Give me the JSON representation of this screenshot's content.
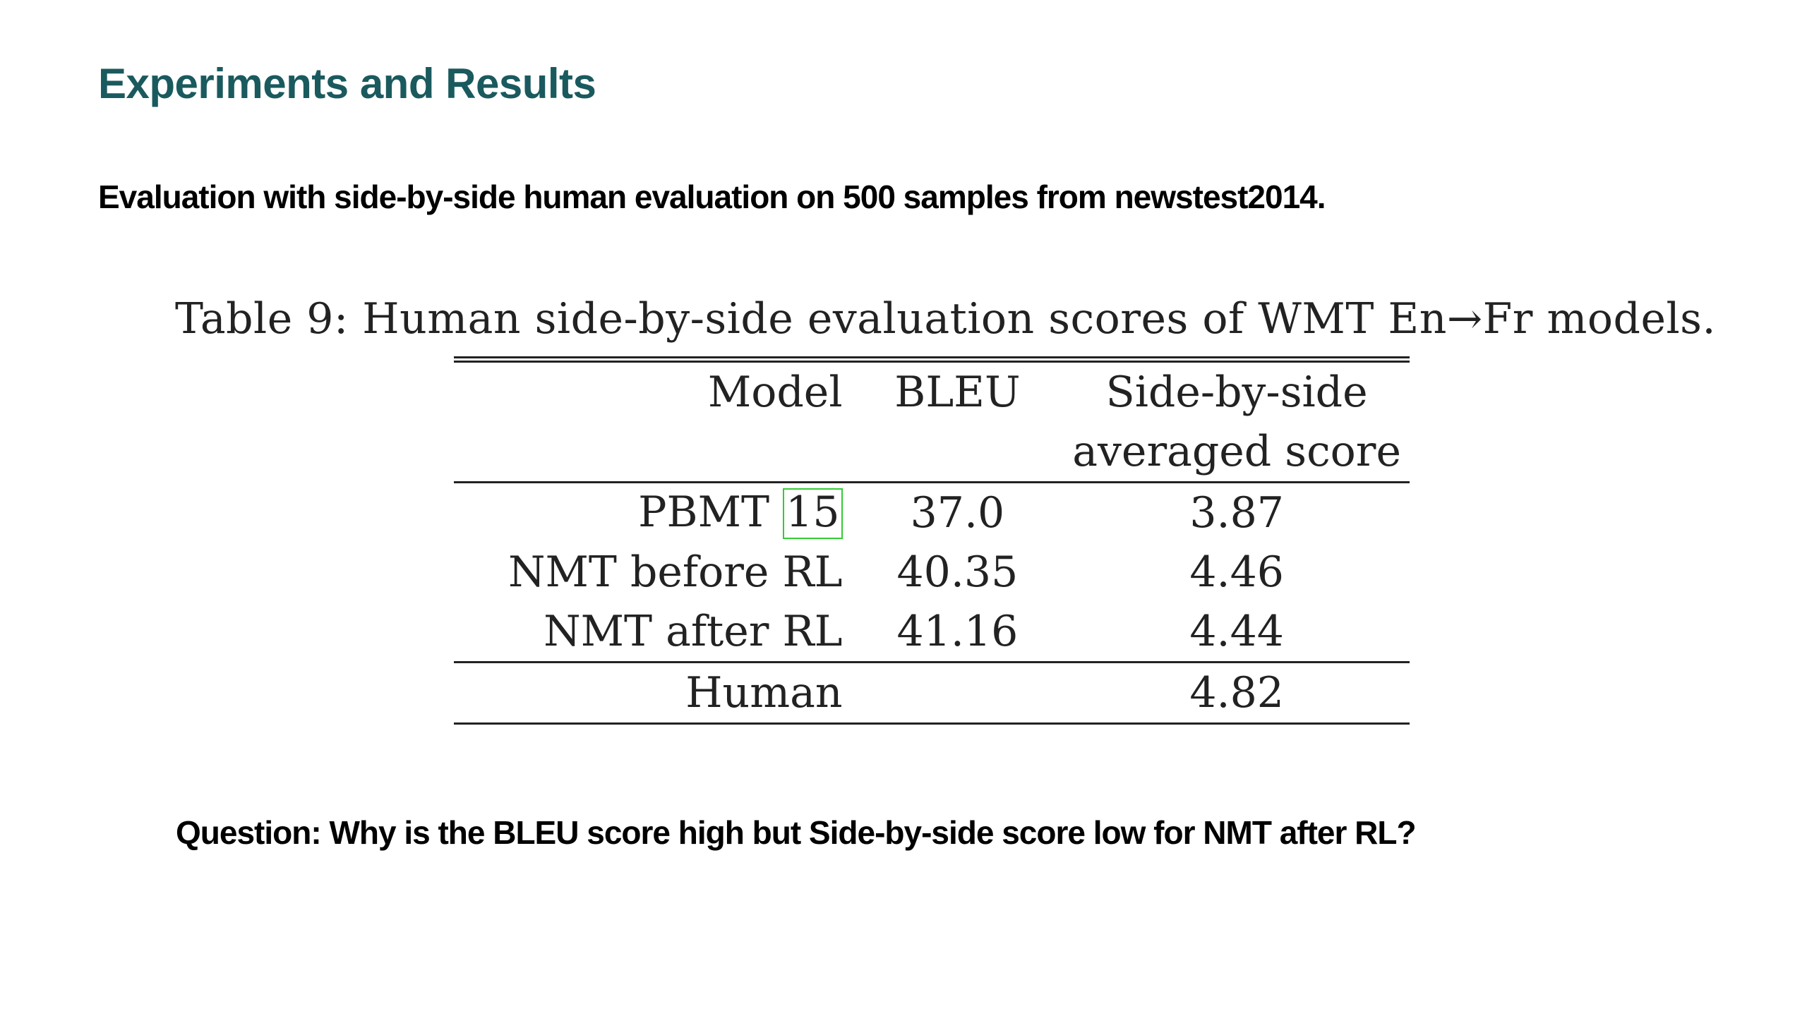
{
  "slide": {
    "title": "Experiments and Results",
    "subtitle": "Evaluation with side-by-side human evaluation on 500 samples from newstest2014.",
    "question": "Question: Why is the BLEU score high but Side-by-side score low for NMT after RL?"
  },
  "table": {
    "caption": "Table 9: Human side-by-side evaluation scores of WMT En→Fr models.",
    "headers": {
      "model": "Model",
      "bleu": "BLEU",
      "sbs_line1": "Side-by-side",
      "sbs_line2": "averaged score"
    },
    "rows": [
      {
        "model": "PBMT",
        "citation": "15",
        "bleu": "37.0",
        "sbs": "3.87"
      },
      {
        "model": "NMT before RL",
        "citation": "",
        "bleu": "40.35",
        "sbs": "4.46"
      },
      {
        "model": "NMT after RL",
        "citation": "",
        "bleu": "41.16",
        "sbs": "4.44"
      }
    ],
    "human_row": {
      "model": "Human",
      "bleu": "",
      "sbs": "4.82"
    }
  },
  "colors": {
    "title": "#1a5a5e",
    "citation_box": "#33cc33"
  }
}
